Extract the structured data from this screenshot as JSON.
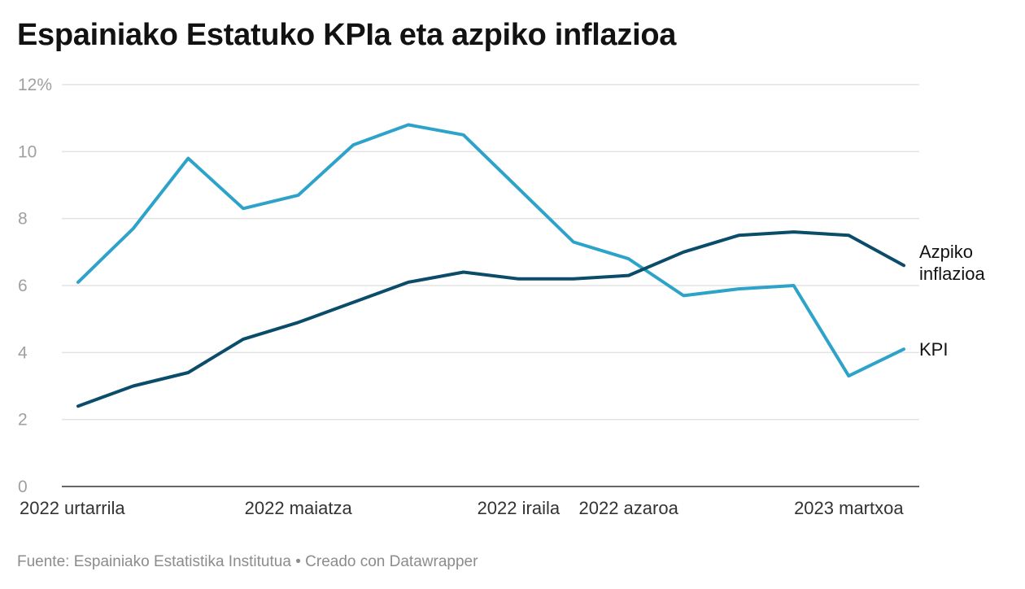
{
  "title": "Espainiako Estatuko KPIa eta azpiko inflazioa",
  "footer": {
    "source_prefix": "Fuente:",
    "source_name": "Espainiako Estatistika Institutua",
    "separator": "•",
    "credit": "Creado con Datawrapper"
  },
  "colors": {
    "kpi": "#2ea3c9",
    "azpiko": "#0a4c6a",
    "grid": "#e3e3e3",
    "baseline": "#333333"
  },
  "chart_data": {
    "type": "line",
    "title": "Espainiako Estatuko KPIa eta azpiko inflazioa",
    "xlabel": "",
    "ylabel": "",
    "ylim": [
      0,
      12
    ],
    "y_ticks": [
      {
        "value": 0,
        "label": "0"
      },
      {
        "value": 2,
        "label": "2"
      },
      {
        "value": 4,
        "label": "4"
      },
      {
        "value": 6,
        "label": "6"
      },
      {
        "value": 8,
        "label": "8"
      },
      {
        "value": 10,
        "label": "10"
      },
      {
        "value": 12,
        "label": "12%"
      }
    ],
    "x": [
      "2022-01",
      "2022-02",
      "2022-03",
      "2022-04",
      "2022-05",
      "2022-06",
      "2022-07",
      "2022-08",
      "2022-09",
      "2022-10",
      "2022-11",
      "2022-12",
      "2023-01",
      "2023-02",
      "2023-03",
      "2023-04"
    ],
    "x_tick_labels": [
      {
        "index": 0,
        "label": "2022 urtarrila"
      },
      {
        "index": 4,
        "label": "2022 maiatza"
      },
      {
        "index": 8,
        "label": "2022 iraila"
      },
      {
        "index": 10,
        "label": "2022 azaroa"
      },
      {
        "index": 14,
        "label": "2023 martxoa"
      }
    ],
    "grid": true,
    "legend": "direct labels at line ends",
    "series": [
      {
        "name": "KPI",
        "label_lines": [
          "KPI"
        ],
        "color": "#2ea3c9",
        "values": [
          6.1,
          7.7,
          9.8,
          8.3,
          8.7,
          10.2,
          10.8,
          10.5,
          8.9,
          7.3,
          6.8,
          5.7,
          5.9,
          6.0,
          3.3,
          4.1
        ]
      },
      {
        "name": "Azpiko inflazioa",
        "label_lines": [
          "Azpiko",
          "inflazioa"
        ],
        "color": "#0a4c6a",
        "values": [
          2.4,
          3.0,
          3.4,
          4.4,
          4.9,
          5.5,
          6.1,
          6.4,
          6.2,
          6.2,
          6.3,
          7.0,
          7.5,
          7.6,
          7.5,
          6.6
        ]
      }
    ]
  }
}
